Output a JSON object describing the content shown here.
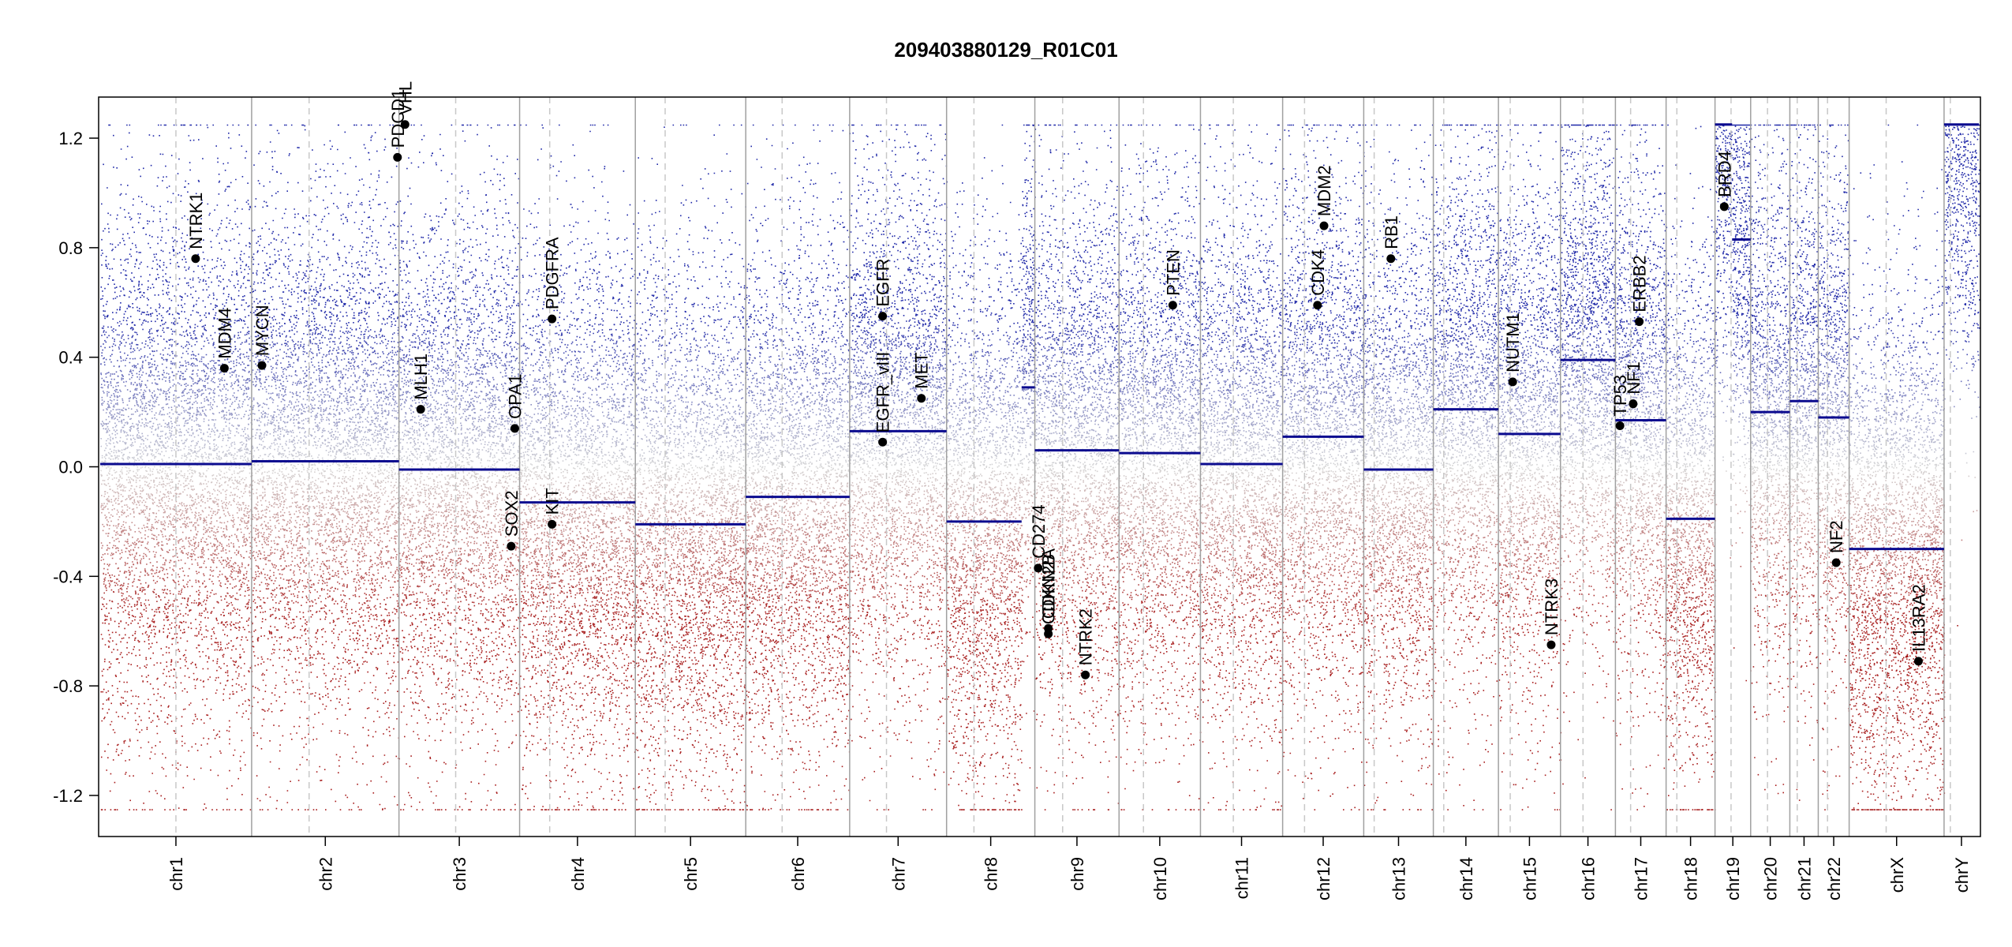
{
  "chart_data": {
    "type": "scatter",
    "title": "209403880129_R01C01",
    "xlabel": "",
    "ylabel": "",
    "ylim": [
      -1.35,
      1.35
    ],
    "clip": [
      -1.25,
      1.25
    ],
    "yticks": [
      -1.2,
      -0.8,
      -0.4,
      0.0,
      0.4,
      0.8,
      1.2
    ],
    "ytick_labels": [
      "-1.2",
      "-0.8",
      "-0.4",
      "0.0",
      "0.4",
      "0.8",
      "1.2"
    ],
    "colors": {
      "gain": "#1f28a8",
      "loss": "#a81e1e",
      "segment": "#0b0b8f",
      "boundary": "#a0a0a0",
      "centromere": "#c8c8c8"
    },
    "chromosomes": [
      {
        "name": "chr1",
        "size": 248.9,
        "centromere": 0.5,
        "segments": [
          {
            "s": 0.0,
            "e": 1.0,
            "v": 0.01
          }
        ]
      },
      {
        "name": "chr2",
        "size": 242.2,
        "centromere": 0.39,
        "segments": [
          {
            "s": 0.0,
            "e": 1.0,
            "v": 0.02
          }
        ]
      },
      {
        "name": "chr3",
        "size": 198.3,
        "centromere": 0.47,
        "segments": [
          {
            "s": 0.0,
            "e": 1.0,
            "v": -0.01
          }
        ]
      },
      {
        "name": "chr4",
        "size": 190.2,
        "centromere": 0.26,
        "segments": [
          {
            "s": 0.0,
            "e": 1.0,
            "v": -0.13
          }
        ]
      },
      {
        "name": "chr5",
        "size": 181.5,
        "centromere": 0.27,
        "segments": [
          {
            "s": 0.0,
            "e": 1.0,
            "v": -0.21
          }
        ]
      },
      {
        "name": "chr6",
        "size": 170.8,
        "centromere": 0.35,
        "segments": [
          {
            "s": 0.0,
            "e": 1.0,
            "v": -0.11
          }
        ]
      },
      {
        "name": "chr7",
        "size": 159.3,
        "centromere": 0.38,
        "segments": [
          {
            "s": 0.0,
            "e": 1.0,
            "v": 0.13
          }
        ]
      },
      {
        "name": "chr8",
        "size": 145.1,
        "centromere": 0.31,
        "segments": [
          {
            "s": 0.0,
            "e": 0.85,
            "v": -0.2
          },
          {
            "s": 0.85,
            "e": 1.0,
            "v": 0.29
          }
        ]
      },
      {
        "name": "chr9",
        "size": 138.4,
        "centromere": 0.33,
        "segments": [
          {
            "s": 0.0,
            "e": 1.0,
            "v": 0.06
          }
        ]
      },
      {
        "name": "chr10",
        "size": 133.8,
        "centromere": 0.3,
        "segments": [
          {
            "s": 0.0,
            "e": 1.0,
            "v": 0.05
          }
        ]
      },
      {
        "name": "chr11",
        "size": 135.1,
        "centromere": 0.4,
        "segments": [
          {
            "s": 0.0,
            "e": 1.0,
            "v": 0.01
          }
        ]
      },
      {
        "name": "chr12",
        "size": 133.3,
        "centromere": 0.27,
        "segments": [
          {
            "s": 0.0,
            "e": 1.0,
            "v": 0.11
          }
        ]
      },
      {
        "name": "chr13",
        "size": 114.4,
        "centromere": 0.15,
        "segments": [
          {
            "s": 0.0,
            "e": 1.0,
            "v": -0.01
          }
        ]
      },
      {
        "name": "chr14",
        "size": 107.0,
        "centromere": 0.16,
        "segments": [
          {
            "s": 0.0,
            "e": 1.0,
            "v": 0.21
          }
        ]
      },
      {
        "name": "chr15",
        "size": 102.0,
        "centromere": 0.19,
        "segments": [
          {
            "s": 0.0,
            "e": 1.0,
            "v": 0.12
          }
        ]
      },
      {
        "name": "chr16",
        "size": 90.3,
        "centromere": 0.41,
        "segments": [
          {
            "s": 0.0,
            "e": 1.0,
            "v": 0.39
          }
        ]
      },
      {
        "name": "chr17",
        "size": 83.3,
        "centromere": 0.3,
        "segments": [
          {
            "s": 0.0,
            "e": 1.0,
            "v": 0.17
          }
        ]
      },
      {
        "name": "chr18",
        "size": 80.4,
        "centromere": 0.22,
        "segments": [
          {
            "s": 0.0,
            "e": 1.0,
            "v": -0.19
          }
        ]
      },
      {
        "name": "chr19",
        "size": 58.6,
        "centromere": 0.45,
        "segments": [
          {
            "s": 0.0,
            "e": 0.48,
            "v": 1.25
          },
          {
            "s": 0.48,
            "e": 1.0,
            "v": 0.83
          }
        ]
      },
      {
        "name": "chr20",
        "size": 64.4,
        "centromere": 0.43,
        "segments": [
          {
            "s": 0.0,
            "e": 1.0,
            "v": 0.2
          }
        ]
      },
      {
        "name": "chr21",
        "size": 46.7,
        "centromere": 0.26,
        "segments": [
          {
            "s": 0.0,
            "e": 1.0,
            "v": 0.24
          }
        ]
      },
      {
        "name": "chr22",
        "size": 50.8,
        "centromere": 0.3,
        "segments": [
          {
            "s": 0.0,
            "e": 1.0,
            "v": 0.18
          }
        ]
      },
      {
        "name": "chrX",
        "size": 156.0,
        "centromere": 0.39,
        "segments": [
          {
            "s": 0.0,
            "e": 1.0,
            "v": -0.3
          }
        ]
      },
      {
        "name": "chrY",
        "size": 57.2,
        "centromere": 0.18,
        "segments": [
          {
            "s": 0.0,
            "e": 1.0,
            "v": 1.25
          }
        ]
      }
    ],
    "genes": [
      {
        "name": "NTRK1",
        "chr": "chr1",
        "pos": 0.63,
        "y": 0.76
      },
      {
        "name": "MDM4",
        "chr": "chr1",
        "pos": 0.82,
        "y": 0.36
      },
      {
        "name": "MYCN",
        "chr": "chr2",
        "pos": 0.07,
        "y": 0.37
      },
      {
        "name": "VHL",
        "chr": "chr3",
        "pos": 0.05,
        "y": 1.25
      },
      {
        "name": "PDCD1",
        "chr": "chr2",
        "pos": 0.99,
        "y": 1.13
      },
      {
        "name": "MLH1",
        "chr": "chr3",
        "pos": 0.18,
        "y": 0.21
      },
      {
        "name": "OPA1",
        "chr": "chr3",
        "pos": 0.96,
        "y": 0.14
      },
      {
        "name": "SOX2",
        "chr": "chr3",
        "pos": 0.93,
        "y": -0.29
      },
      {
        "name": "PDGFRA",
        "chr": "chr4",
        "pos": 0.28,
        "y": 0.54
      },
      {
        "name": "KIT",
        "chr": "chr4",
        "pos": 0.28,
        "y": -0.21
      },
      {
        "name": "EGFR",
        "chr": "chr7",
        "pos": 0.34,
        "y": 0.55
      },
      {
        "name": "EGFR_vIII",
        "chr": "chr7",
        "pos": 0.34,
        "y": 0.09
      },
      {
        "name": "MET",
        "chr": "chr7",
        "pos": 0.74,
        "y": 0.25
      },
      {
        "name": "CD274",
        "chr": "chr9",
        "pos": 0.04,
        "y": -0.37
      },
      {
        "name": "CDKN2A",
        "chr": "chr9",
        "pos": 0.16,
        "y": -0.59
      },
      {
        "name": "CDKN2B",
        "chr": "chr9",
        "pos": 0.16,
        "y": -0.61
      },
      {
        "name": "NTRK2",
        "chr": "chr9",
        "pos": 0.6,
        "y": -0.76
      },
      {
        "name": "PTEN",
        "chr": "chr10",
        "pos": 0.66,
        "y": 0.59
      },
      {
        "name": "CDK4",
        "chr": "chr12",
        "pos": 0.43,
        "y": 0.59
      },
      {
        "name": "MDM2",
        "chr": "chr12",
        "pos": 0.51,
        "y": 0.88
      },
      {
        "name": "RB1",
        "chr": "chr13",
        "pos": 0.39,
        "y": 0.76
      },
      {
        "name": "NUTM1",
        "chr": "chr15",
        "pos": 0.23,
        "y": 0.31
      },
      {
        "name": "NTRK3",
        "chr": "chr15",
        "pos": 0.85,
        "y": -0.65
      },
      {
        "name": "TP53",
        "chr": "chr17",
        "pos": 0.09,
        "y": 0.15
      },
      {
        "name": "NF1",
        "chr": "chr17",
        "pos": 0.35,
        "y": 0.23
      },
      {
        "name": "ERBB2",
        "chr": "chr17",
        "pos": 0.47,
        "y": 0.53
      },
      {
        "name": "BRD4",
        "chr": "chr19",
        "pos": 0.26,
        "y": 0.95
      },
      {
        "name": "NF2",
        "chr": "chr22",
        "pos": 0.58,
        "y": -0.35
      },
      {
        "name": "IL13RA2",
        "chr": "chrX",
        "pos": 0.73,
        "y": -0.71
      }
    ]
  }
}
